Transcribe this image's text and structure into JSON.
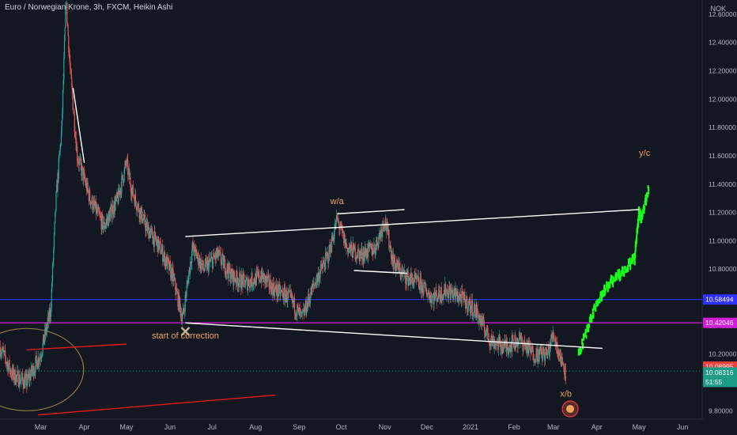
{
  "header": {
    "symbol_line": "Euro / Norwegian Krone, 3h, FXCM, Heikin Ashi",
    "currency": "NOK"
  },
  "chart_data": {
    "type": "candlestick",
    "title": "Euro / Norwegian Krone, 3h, FXCM, Heikin Ashi",
    "y_axis_side": "right",
    "y_unit": "NOK",
    "ylim": [
      9.74,
      12.7
    ],
    "y_ticks": [
      "12.60000",
      "12.40000",
      "12.20000",
      "12.00000",
      "11.80000",
      "11.60000",
      "11.40000",
      "11.20000",
      "11.00000",
      "10.80000",
      "10.60000",
      "10.40000",
      "10.20000",
      "10.00000",
      "9.80000"
    ],
    "y_tick_values": [
      12.6,
      12.4,
      12.2,
      12.0,
      11.8,
      11.6,
      11.4,
      11.2,
      11.0,
      10.8,
      10.6,
      10.4,
      10.2,
      10.0,
      9.8
    ],
    "x_ticks": [
      "Mar",
      "Apr",
      "May",
      "Jun",
      "Jul",
      "Aug",
      "Sep",
      "Oct",
      "Nov",
      "Dec",
      "2021",
      "Feb",
      "Mar",
      "Apr",
      "May",
      "Jun"
    ],
    "x_tick_dates": [
      "2020-03-01",
      "2020-04-01",
      "2020-05-01",
      "2020-06-01",
      "2020-07-01",
      "2020-08-01",
      "2020-09-01",
      "2020-10-01",
      "2020-11-01",
      "2020-12-01",
      "2021-01-01",
      "2021-02-01",
      "2021-03-01",
      "2021-04-01",
      "2021-05-01",
      "2021-06-01"
    ],
    "xlim": [
      "2020-02-01",
      "2021-06-15"
    ],
    "price_path": [
      {
        "date": "2020-02-01",
        "close": 10.25
      },
      {
        "date": "2020-02-10",
        "close": 10.05
      },
      {
        "date": "2020-02-20",
        "close": 10.0
      },
      {
        "date": "2020-03-01",
        "close": 10.2
      },
      {
        "date": "2020-03-08",
        "close": 10.5
      },
      {
        "date": "2020-03-12",
        "close": 11.3
      },
      {
        "date": "2020-03-16",
        "close": 11.8
      },
      {
        "date": "2020-03-19",
        "close": 12.7
      },
      {
        "date": "2020-03-22",
        "close": 12.2
      },
      {
        "date": "2020-03-27",
        "close": 11.6
      },
      {
        "date": "2020-04-05",
        "close": 11.3
      },
      {
        "date": "2020-04-15",
        "close": 11.1
      },
      {
        "date": "2020-04-25",
        "close": 11.3
      },
      {
        "date": "2020-05-01",
        "close": 11.55
      },
      {
        "date": "2020-05-05",
        "close": 11.35
      },
      {
        "date": "2020-05-15",
        "close": 11.1
      },
      {
        "date": "2020-05-25",
        "close": 10.95
      },
      {
        "date": "2020-06-03",
        "close": 10.75
      },
      {
        "date": "2020-06-10",
        "close": 10.45
      },
      {
        "date": "2020-06-17",
        "close": 10.95
      },
      {
        "date": "2020-06-25",
        "close": 10.8
      },
      {
        "date": "2020-07-05",
        "close": 10.9
      },
      {
        "date": "2020-07-15",
        "close": 10.75
      },
      {
        "date": "2020-07-25",
        "close": 10.7
      },
      {
        "date": "2020-08-05",
        "close": 10.75
      },
      {
        "date": "2020-08-15",
        "close": 10.65
      },
      {
        "date": "2020-08-25",
        "close": 10.6
      },
      {
        "date": "2020-09-03",
        "close": 10.45
      },
      {
        "date": "2020-09-12",
        "close": 10.7
      },
      {
        "date": "2020-09-22",
        "close": 10.9
      },
      {
        "date": "2020-09-28",
        "close": 11.15
      },
      {
        "date": "2020-10-05",
        "close": 10.95
      },
      {
        "date": "2020-10-15",
        "close": 10.9
      },
      {
        "date": "2020-10-25",
        "close": 10.95
      },
      {
        "date": "2020-11-01",
        "close": 11.15
      },
      {
        "date": "2020-11-07",
        "close": 10.85
      },
      {
        "date": "2020-11-15",
        "close": 10.75
      },
      {
        "date": "2020-11-25",
        "close": 10.7
      },
      {
        "date": "2020-12-05",
        "close": 10.6
      },
      {
        "date": "2020-12-15",
        "close": 10.65
      },
      {
        "date": "2020-12-25",
        "close": 10.6
      },
      {
        "date": "2021-01-05",
        "close": 10.5
      },
      {
        "date": "2021-01-15",
        "close": 10.3
      },
      {
        "date": "2021-01-25",
        "close": 10.25
      },
      {
        "date": "2021-02-05",
        "close": 10.3
      },
      {
        "date": "2021-02-15",
        "close": 10.2
      },
      {
        "date": "2021-02-25",
        "close": 10.2
      },
      {
        "date": "2021-03-01",
        "close": 10.35
      },
      {
        "date": "2021-03-05",
        "close": 10.2
      },
      {
        "date": "2021-03-10",
        "close": 10.08
      }
    ],
    "projection": [
      {
        "date": "2021-03-19",
        "value": 10.19
      },
      {
        "date": "2021-03-28",
        "value": 10.45
      },
      {
        "date": "2021-04-04",
        "value": 10.62
      },
      {
        "date": "2021-04-12",
        "value": 10.72
      },
      {
        "date": "2021-04-20",
        "value": 10.78
      },
      {
        "date": "2021-04-28",
        "value": 10.88
      },
      {
        "date": "2021-05-01",
        "value": 11.2
      },
      {
        "date": "2021-05-03",
        "value": 11.15
      },
      {
        "date": "2021-05-08",
        "value": 11.39
      }
    ],
    "horizontal_lines": [
      {
        "value": 10.58494,
        "color": "#2f2fff"
      },
      {
        "value": 10.42046,
        "color": "#d21ddb"
      }
    ],
    "trend_lines": [
      {
        "from": {
          "date": "2020-06-12",
          "value": 11.03
        },
        "to": {
          "date": "2021-05-01",
          "value": 11.22
        },
        "color": "#ffffff"
      },
      {
        "from": {
          "date": "2020-06-12",
          "value": 10.42
        },
        "to": {
          "date": "2021-04-05",
          "value": 10.24
        },
        "color": "#ffffff"
      },
      {
        "from": {
          "date": "2020-09-28",
          "value": 11.19
        },
        "to": {
          "date": "2020-11-15",
          "value": 11.22
        },
        "color": "#ffffff"
      },
      {
        "from": {
          "date": "2020-10-10",
          "value": 10.79
        },
        "to": {
          "date": "2020-11-17",
          "value": 10.77
        },
        "color": "#ffffff"
      },
      {
        "from": {
          "date": "2020-03-24",
          "value": 12.08
        },
        "to": {
          "date": "2020-04-01",
          "value": 11.55
        },
        "color": "#ffffff"
      },
      {
        "from": {
          "date": "2020-02-20",
          "value": 10.23
        },
        "to": {
          "date": "2020-05-01",
          "value": 10.27
        },
        "color": "#e31b1b"
      },
      {
        "from": {
          "date": "2020-02-28",
          "value": 9.77
        },
        "to": {
          "date": "2020-08-15",
          "value": 9.91
        },
        "color": "#e31b1b"
      }
    ],
    "ellipse": {
      "center": {
        "date": "2020-02-20",
        "value": 10.09
      },
      "color": "#8a7a3e"
    },
    "annotations": [
      {
        "text": "y/c",
        "date": "2021-05-05",
        "value": 11.6,
        "color": "#f0a35e"
      },
      {
        "text": "w/a",
        "date": "2020-09-28",
        "value": 11.26,
        "color": "#f0a35e"
      },
      {
        "text": "start of correction",
        "date": "2020-06-12",
        "value": 10.31,
        "color": "#f0a35e"
      },
      {
        "text": "x/b",
        "date": "2021-03-10",
        "value": 9.9,
        "color": "#f0a35e"
      }
    ],
    "price_labels": [
      {
        "value": "10.58494",
        "color": "#2f2fff"
      },
      {
        "value": "10.42046",
        "color": "#d21ddb"
      },
      {
        "value": "10.08995",
        "color": "#e8403c"
      },
      {
        "value": "10.08316",
        "color": "#1f9c87"
      },
      {
        "value": "51:55",
        "color": "#1f9c87"
      }
    ],
    "grid": false,
    "colors": {
      "up": "#26a69a",
      "down": "#ef5350",
      "projection": "#1aff1a",
      "background": "#131722"
    }
  }
}
